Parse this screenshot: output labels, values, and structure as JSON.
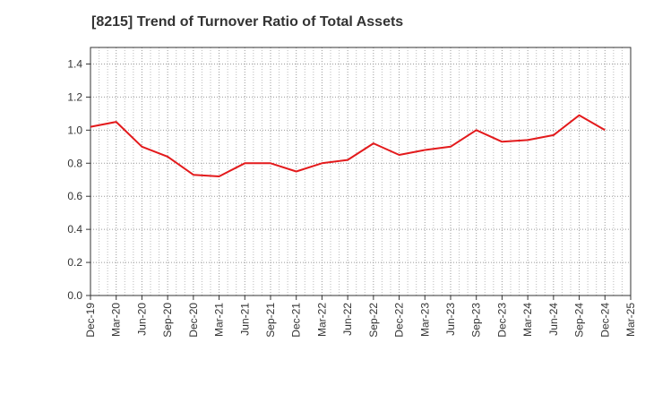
{
  "chart_data": {
    "type": "line",
    "title": "[8215]  Trend of Turnover Ratio of Total Assets",
    "xlabel": "",
    "ylabel": "",
    "ylim": [
      0,
      1.5
    ],
    "yticks": [
      "0.0",
      "0.2",
      "0.4",
      "0.6",
      "0.8",
      "1.0",
      "1.2",
      "1.4"
    ],
    "x_tick_labels": [
      "Dec-19",
      "Mar-20",
      "Jun-20",
      "Sep-20",
      "Dec-20",
      "Mar-21",
      "Jun-21",
      "Sep-21",
      "Dec-21",
      "Mar-22",
      "Jun-22",
      "Sep-22",
      "Dec-22",
      "Mar-23",
      "Jun-23",
      "Sep-23",
      "Dec-23",
      "Mar-24",
      "Jun-24",
      "Sep-24",
      "Dec-24",
      "Mar-25"
    ],
    "grid": true,
    "series": [
      {
        "color": "#e31a1c",
        "x": [
          "Dec-19",
          "Mar-20",
          "Jun-20",
          "Sep-20",
          "Dec-20",
          "Mar-21",
          "Jun-21",
          "Sep-21",
          "Dec-21",
          "Mar-22",
          "Jun-22",
          "Sep-22",
          "Dec-22",
          "Mar-23",
          "Jun-23",
          "Sep-23",
          "Dec-23",
          "Mar-24",
          "Jun-24",
          "Sep-24",
          "Dec-24"
        ],
        "values": [
          1.02,
          1.05,
          0.9,
          0.84,
          0.73,
          0.72,
          0.8,
          0.8,
          0.75,
          0.8,
          0.82,
          0.92,
          0.85,
          0.88,
          0.9,
          1.0,
          0.93,
          0.94,
          0.97,
          1.09,
          1.0
        ]
      }
    ]
  }
}
